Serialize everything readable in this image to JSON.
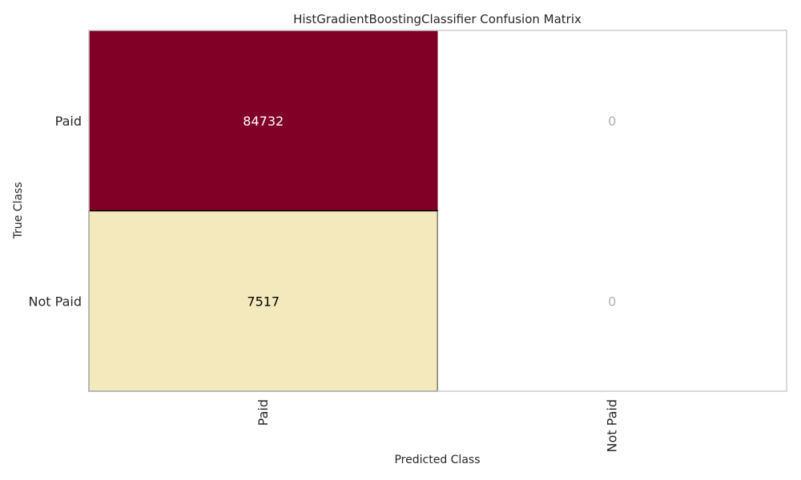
{
  "chart_data": {
    "type": "heatmap",
    "title": "HistGradientBoostingClassifier Confusion Matrix",
    "xlabel": "Predicted Class",
    "ylabel": "True Class",
    "row_labels": [
      "Paid",
      "Not Paid"
    ],
    "col_labels": [
      "Paid",
      "Not Paid"
    ],
    "values": [
      [
        84732,
        0
      ],
      [
        7517,
        0
      ]
    ],
    "colors": {
      "max": "#800026",
      "low": "#ffffcc",
      "zero": "#ffffff",
      "text_on_dark": "#ffffff",
      "text_on_light": "#000000",
      "text_zero": "#b0b0b0",
      "frame": "#cccccc"
    },
    "grid": false
  }
}
